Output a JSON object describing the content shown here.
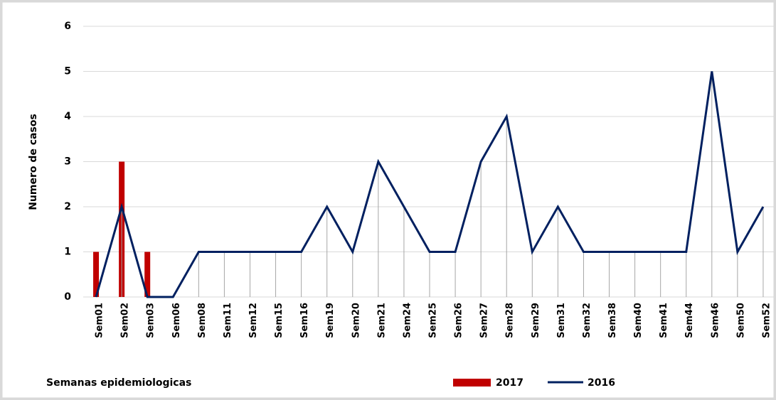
{
  "chart_data": {
    "type": "bar",
    "y_label": "Numero de casos",
    "x_label": "Semanas epidemiologicas",
    "categories": [
      "Sem01",
      "Sem02",
      "Sem03",
      "Sem06",
      "Sem08",
      "Sem11",
      "Sem12",
      "Sem15",
      "Sem16",
      "Sem19",
      "Sem20",
      "Sem21",
      "Sem24",
      "Sem25",
      "Sem26",
      "Sem27",
      "Sem28",
      "Sem29",
      "Sem31",
      "Sem32",
      "Sem38",
      "Sem40",
      "Sem41",
      "Sem44",
      "Sem46",
      "Sem50",
      "Sem52"
    ],
    "series": [
      {
        "name": "2017",
        "type": "bar",
        "color": "#c00000",
        "values": [
          1,
          3,
          1,
          null,
          null,
          null,
          null,
          null,
          null,
          null,
          null,
          null,
          null,
          null,
          null,
          null,
          null,
          null,
          null,
          null,
          null,
          null,
          null,
          null,
          null,
          null,
          null
        ]
      },
      {
        "name": "2016",
        "type": "line",
        "color": "#002060",
        "values": [
          0,
          2,
          0,
          0,
          1,
          1,
          1,
          1,
          1,
          2,
          1,
          3,
          2,
          1,
          1,
          3,
          4,
          1,
          2,
          1,
          1,
          1,
          1,
          1,
          5,
          1,
          2
        ]
      }
    ],
    "ylim": [
      0,
      6
    ],
    "yticks": [
      0,
      1,
      2,
      3,
      4,
      5,
      6
    ],
    "grid": true,
    "drop_lines": true,
    "legend": "bottom"
  }
}
